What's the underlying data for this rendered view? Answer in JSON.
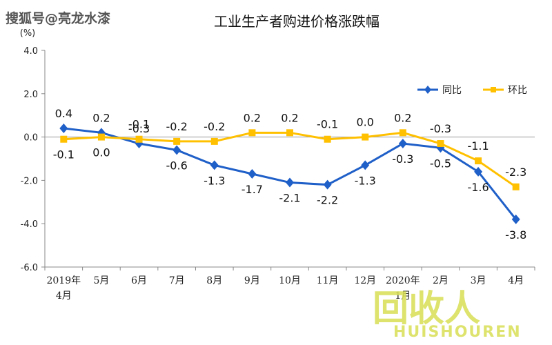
{
  "watermark": {
    "top_text": "搜狐号@亮龙水漆",
    "logo_text": "回收人",
    "logo_subtext": "HUISHOUREN"
  },
  "chart_data": {
    "type": "line",
    "title": "工业生产者购进价格涨跌幅",
    "ylabel": "(%)",
    "categories": [
      "2019年4月",
      "5月",
      "6月",
      "7月",
      "8月",
      "9月",
      "10月",
      "11月",
      "12月",
      "2020年1月",
      "2月",
      "3月",
      "4月"
    ],
    "yticks": [
      "4.0",
      "2.0",
      "0.0",
      "-2.0",
      "-4.0",
      "-6.0"
    ],
    "ylim": [
      -6,
      4
    ],
    "grid": false,
    "legend_position": "top-right",
    "series": [
      {
        "name": "同比",
        "color": "#1f5fc8",
        "marker": "diamond",
        "values": [
          0.4,
          0.2,
          -0.3,
          -0.6,
          -1.3,
          -1.7,
          -2.1,
          -2.2,
          -1.3,
          -0.3,
          -0.5,
          -1.6,
          -3.8
        ],
        "labels": [
          "0.4",
          "0.2",
          "-0.3",
          "-0.6",
          "-1.3",
          "-1.7",
          "-2.1",
          "-2.2",
          "-1.3",
          "-0.3",
          "-0.5",
          "-1.6",
          "-3.8"
        ]
      },
      {
        "name": "环比",
        "color": "#ffc000",
        "marker": "square",
        "values": [
          -0.1,
          0.0,
          -0.1,
          -0.2,
          -0.2,
          0.2,
          0.2,
          -0.1,
          0.0,
          0.2,
          -0.3,
          -1.1,
          -2.3
        ],
        "labels": [
          "-0.1",
          "0.0",
          "-0.1",
          "-0.2",
          "-0.2",
          "0.2",
          "0.2",
          "-0.1",
          "0.0",
          "0.2",
          "-0.3",
          "-1.1",
          "-2.3"
        ]
      }
    ]
  }
}
